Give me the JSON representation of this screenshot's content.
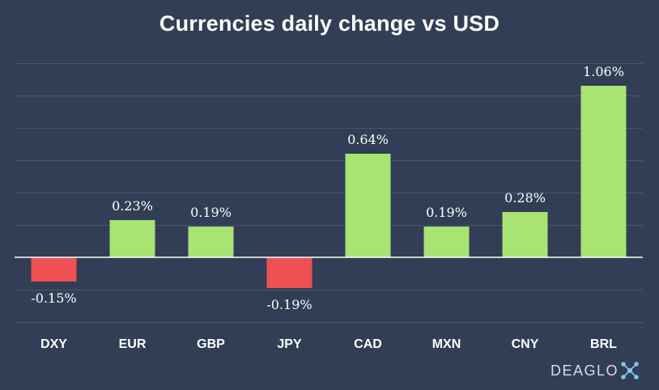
{
  "brand": {
    "name": "DEAGLO"
  },
  "colors": {
    "background": "#323e55",
    "positive": "#a8e373",
    "negative": "#ed5052",
    "grid": "#4b5670",
    "zero_line": "#ffffff",
    "text": "#ffffff"
  },
  "chart_data": {
    "type": "bar",
    "title": "Currencies daily change vs USD",
    "xlabel": "",
    "ylabel": "",
    "categories": [
      "DXY",
      "EUR",
      "GBP",
      "JPY",
      "CAD",
      "MXN",
      "CNY",
      "BRL"
    ],
    "values": [
      -0.15,
      0.23,
      0.19,
      -0.19,
      0.64,
      0.19,
      0.28,
      1.06
    ],
    "data_labels": [
      "-0.15%",
      "0.23%",
      "0.19%",
      "-0.19%",
      "0.64%",
      "0.19%",
      "0.28%",
      "1.06%"
    ],
    "ylim": [
      -0.4,
      1.2
    ],
    "grid": true,
    "legend": "none"
  }
}
